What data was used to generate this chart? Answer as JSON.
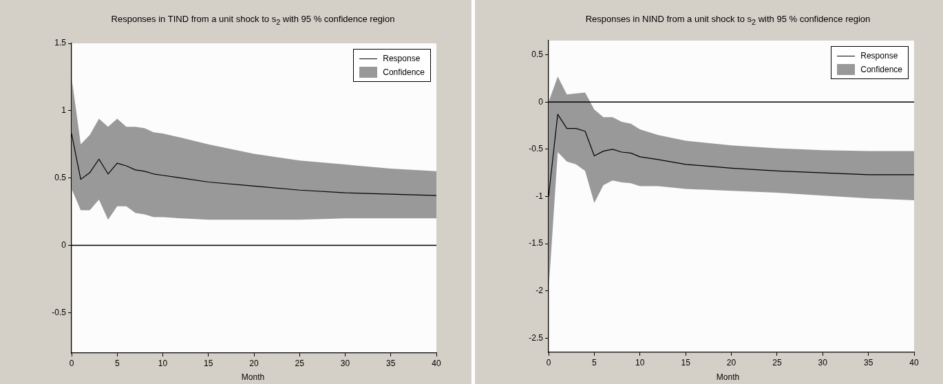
{
  "chart_data": [
    {
      "type": "line",
      "title": "Responses in TIND from a unit shock to s$_{2}$ with 95 % confidence region",
      "xlabel": "Month",
      "x": [
        0,
        1,
        2,
        3,
        4,
        5,
        6,
        7,
        8,
        9,
        10,
        12,
        15,
        20,
        25,
        30,
        35,
        40
      ],
      "series": [
        {
          "name": "Confidence",
          "type": "area",
          "color": "#999999",
          "values": [
            null,
            null,
            null,
            null,
            null,
            null,
            null,
            null,
            null,
            null,
            null,
            null,
            null,
            null,
            null,
            null,
            null,
            null
          ],
          "lower": [
            0.42,
            0.26,
            0.26,
            0.34,
            0.19,
            0.29,
            0.29,
            0.24,
            0.23,
            0.21,
            0.21,
            0.2,
            0.19,
            0.19,
            0.19,
            0.2,
            0.2,
            0.2
          ],
          "upper": [
            1.25,
            0.75,
            0.82,
            0.94,
            0.88,
            0.94,
            0.88,
            0.88,
            0.87,
            0.84,
            0.83,
            0.8,
            0.75,
            0.68,
            0.63,
            0.6,
            0.57,
            0.55
          ]
        },
        {
          "name": "Response",
          "type": "line",
          "color": "#000000",
          "values": [
            0.83,
            0.49,
            0.54,
            0.64,
            0.53,
            0.61,
            0.59,
            0.56,
            0.55,
            0.53,
            0.52,
            0.5,
            0.47,
            0.44,
            0.41,
            0.39,
            0.38,
            0.37
          ]
        }
      ],
      "xlim": [
        0,
        40
      ],
      "xticks": [
        0,
        5,
        10,
        15,
        20,
        25,
        30,
        35,
        40
      ],
      "ylim": [
        -0.8,
        1.5
      ],
      "yticks": [
        -0.5,
        0,
        0.5,
        1,
        1.5
      ],
      "ref_lines": [
        {
          "axis": "y",
          "value": 0,
          "color": "#000000"
        }
      ],
      "grid": false,
      "legend": "top right",
      "marker": "none",
      "line_style": "solid"
    },
    {
      "type": "line",
      "title": "Responses in NIND from a unit shock to s$_{2}$ with 95 % confidence region",
      "xlabel": "Month",
      "x": [
        0,
        1,
        2,
        3,
        4,
        5,
        6,
        7,
        8,
        9,
        10,
        12,
        15,
        20,
        25,
        30,
        35,
        40
      ],
      "series": [
        {
          "name": "Confidence",
          "type": "area",
          "color": "#999999",
          "values": [
            null,
            null,
            null,
            null,
            null,
            null,
            null,
            null,
            null,
            null,
            null,
            null,
            null,
            null,
            null,
            null,
            null,
            null
          ],
          "lower": [
            -2.0,
            -0.53,
            -0.63,
            -0.66,
            -0.73,
            -1.07,
            -0.88,
            -0.83,
            -0.85,
            -0.86,
            -0.89,
            -0.89,
            -0.92,
            -0.94,
            -0.96,
            -0.99,
            -1.02,
            -1.04
          ],
          "upper": [
            0.0,
            0.27,
            0.08,
            0.09,
            0.1,
            -0.08,
            -0.16,
            -0.16,
            -0.21,
            -0.23,
            -0.29,
            -0.35,
            -0.41,
            -0.46,
            -0.49,
            -0.51,
            -0.52,
            -0.52
          ]
        },
        {
          "name": "Response",
          "type": "line",
          "color": "#000000",
          "values": [
            -1.0,
            -0.13,
            -0.28,
            -0.28,
            -0.31,
            -0.57,
            -0.52,
            -0.5,
            -0.53,
            -0.54,
            -0.58,
            -0.61,
            -0.66,
            -0.7,
            -0.73,
            -0.75,
            -0.77,
            -0.77
          ]
        }
      ],
      "xlim": [
        0,
        40
      ],
      "xticks": [
        0,
        5,
        10,
        15,
        20,
        25,
        30,
        35,
        40
      ],
      "ylim": [
        -2.65,
        0.65
      ],
      "yticks": [
        -2.5,
        -2,
        -1.5,
        -1,
        -0.5,
        0,
        0.5
      ],
      "ref_lines": [
        {
          "axis": "y",
          "value": 0,
          "color": "#000000"
        }
      ],
      "grid": false,
      "legend": "top right",
      "marker": "none",
      "line_style": "solid"
    }
  ]
}
